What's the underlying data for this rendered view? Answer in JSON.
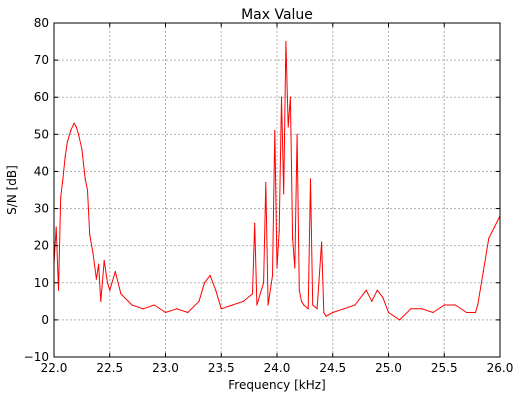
{
  "chart_data": {
    "type": "line",
    "title": "Max Value",
    "xlabel": "Frequency [kHz]",
    "ylabel": "S/N [dB]",
    "xlim": [
      22.0,
      26.0
    ],
    "ylim": [
      -10,
      80
    ],
    "xticks": [
      22.0,
      22.5,
      23.0,
      23.5,
      24.0,
      24.5,
      25.0,
      25.5,
      26.0
    ],
    "xtick_labels": [
      "22.0",
      "22.5",
      "23.0",
      "23.5",
      "24.0",
      "24.5",
      "25.0",
      "25.5",
      "26.0"
    ],
    "yticks": [
      -10,
      0,
      10,
      20,
      30,
      40,
      50,
      60,
      70,
      80
    ],
    "ytick_labels": [
      "−10",
      "0",
      "10",
      "20",
      "30",
      "40",
      "50",
      "60",
      "70",
      "80"
    ],
    "grid": true,
    "series": [
      {
        "color": "#ff0000",
        "x": [
          22.0,
          22.02,
          22.04,
          22.06,
          22.08,
          22.1,
          22.12,
          22.15,
          22.18,
          22.2,
          22.22,
          22.25,
          22.28,
          22.3,
          22.32,
          22.35,
          22.38,
          22.4,
          22.42,
          22.45,
          22.48,
          22.5,
          22.55,
          22.6,
          22.7,
          22.8,
          22.9,
          23.0,
          23.1,
          23.2,
          23.3,
          23.35,
          23.4,
          23.45,
          23.5,
          23.6,
          23.7,
          23.78,
          23.8,
          23.82,
          23.88,
          23.9,
          23.92,
          23.96,
          23.98,
          24.0,
          24.02,
          24.04,
          24.06,
          24.08,
          24.1,
          24.12,
          24.14,
          24.16,
          24.18,
          24.2,
          24.22,
          24.24,
          24.28,
          24.3,
          24.32,
          24.36,
          24.4,
          24.42,
          24.44,
          24.5,
          24.6,
          24.7,
          24.8,
          24.85,
          24.9,
          24.95,
          25.0,
          25.1,
          25.2,
          25.3,
          25.4,
          25.5,
          25.6,
          25.7,
          25.78,
          25.8,
          25.85,
          25.9,
          25.95,
          26.0
        ],
        "y": [
          15,
          25,
          8,
          33,
          38,
          44,
          48,
          51,
          53,
          52,
          50,
          46,
          38,
          35,
          23,
          18,
          11,
          15,
          5,
          16,
          10,
          8,
          13,
          7,
          4,
          3,
          4,
          2,
          3,
          2,
          5,
          10,
          12,
          8,
          3,
          4,
          5,
          7,
          26,
          4,
          10,
          37,
          4,
          12,
          51,
          14,
          24,
          60,
          34,
          75,
          52,
          60,
          22,
          14,
          50,
          8,
          5,
          4,
          3,
          38,
          4,
          3,
          21,
          2,
          1,
          2,
          3,
          4,
          8,
          5,
          8,
          6,
          2,
          0,
          3,
          3,
          2,
          4,
          4,
          2,
          2,
          4,
          13,
          22,
          25,
          28
        ]
      }
    ]
  }
}
